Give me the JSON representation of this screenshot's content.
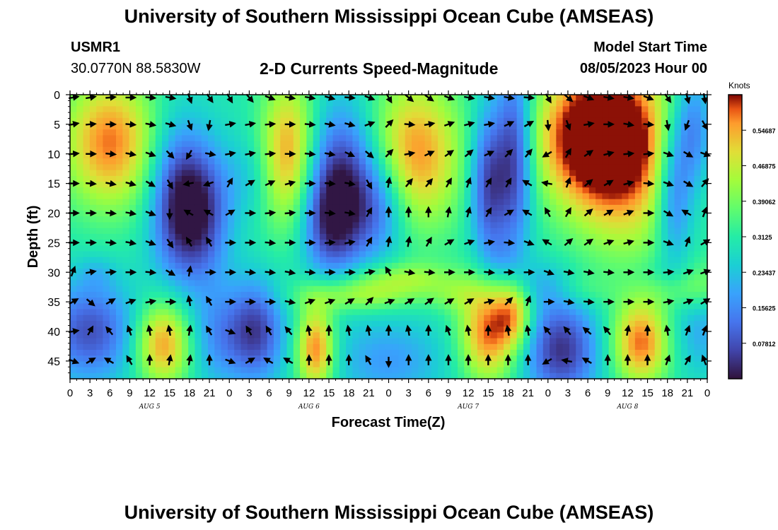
{
  "header": {
    "title": "University of Southern Mississippi Ocean Cube (AMSEAS)",
    "station": "USMR1",
    "coordinates": "30.0770N  88.5830W",
    "subtitle": "2-D Currents Speed-Magnitude",
    "model_start_label": "Model Start Time",
    "model_start_value": "08/05/2023 Hour 00"
  },
  "footer": {
    "title": "University of Southern Mississippi Ocean Cube (AMSEAS)"
  },
  "chart_data": {
    "type": "heatmap",
    "title": "2-D Currents Speed-Magnitude",
    "xlabel": "Forecast Time(Z)",
    "ylabel": "Depth (ft)",
    "x_hours_range": [
      0,
      96
    ],
    "x_tick_hours": [
      0,
      3,
      6,
      9,
      12,
      15,
      18,
      21,
      24,
      27,
      30,
      33,
      36,
      39,
      42,
      45,
      48,
      51,
      54,
      57,
      60,
      63,
      66,
      69,
      72,
      75,
      78,
      81,
      84,
      87,
      90,
      93,
      96
    ],
    "x_tick_labels": [
      "0",
      "3",
      "6",
      "9",
      "12",
      "15",
      "18",
      "21",
      "0",
      "3",
      "6",
      "9",
      "12",
      "15",
      "18",
      "21",
      "0",
      "3",
      "6",
      "9",
      "12",
      "15",
      "18",
      "21",
      "0",
      "3",
      "6",
      "9",
      "12",
      "15",
      "18",
      "21",
      "0"
    ],
    "day_labels": [
      {
        "hour": 12,
        "label": "AUG 5"
      },
      {
        "hour": 36,
        "label": "AUG 6"
      },
      {
        "hour": 60,
        "label": "AUG 7"
      },
      {
        "hour": 84,
        "label": "AUG 8"
      }
    ],
    "ylim": [
      0,
      48
    ],
    "y_inverted": true,
    "y_ticks": [
      0,
      5,
      10,
      15,
      20,
      25,
      30,
      35,
      40,
      45
    ],
    "y_tick_labels": [
      "0",
      "5",
      "10",
      "15",
      "20",
      "25",
      "30",
      "35",
      "40",
      "45"
    ],
    "colorbar": {
      "title": "Knots",
      "range": [
        0,
        0.625
      ],
      "ticks": [
        0.07812,
        0.15625,
        0.23437,
        0.3125,
        0.39062,
        0.46875,
        0.54687
      ],
      "tick_labels": [
        "0.07812",
        "0.15625",
        "0.23437",
        "0.3125",
        "0.39062",
        "0.46875",
        "0.54687"
      ],
      "colormap": "turbo"
    },
    "speed_blobs": {
      "base": 0.3,
      "blobs": [
        {
          "h": 6,
          "d": 8,
          "sh": 5,
          "sd": 8,
          "a": 0.28
        },
        {
          "h": 3,
          "d": 40,
          "sh": 5,
          "sd": 6,
          "a": -0.22
        },
        {
          "h": 16,
          "d": 18,
          "sh": 3,
          "sd": 9,
          "a": -0.24
        },
        {
          "h": 20,
          "d": 20,
          "sh": 3,
          "sd": 8,
          "a": -0.22
        },
        {
          "h": 14,
          "d": 42,
          "sh": 3,
          "sd": 5,
          "a": 0.27
        },
        {
          "h": 4,
          "d": 30,
          "sh": 2,
          "sd": 2,
          "a": -0.05
        },
        {
          "h": 22,
          "d": 41,
          "sh": 3,
          "sd": 6,
          "a": -0.12
        },
        {
          "h": 28,
          "d": 40,
          "sh": 3,
          "sd": 6,
          "a": -0.24
        },
        {
          "h": 27,
          "d": 14,
          "sh": 3,
          "sd": 5,
          "a": -0.06
        },
        {
          "h": 33,
          "d": 10,
          "sh": 3,
          "sd": 9,
          "a": 0.27
        },
        {
          "h": 39,
          "d": 22,
          "sh": 3,
          "sd": 6,
          "a": -0.15
        },
        {
          "h": 41,
          "d": 15,
          "sh": 4,
          "sd": 9,
          "a": -0.28
        },
        {
          "h": 47,
          "d": 19,
          "sh": 3,
          "sd": 6,
          "a": -0.15
        },
        {
          "h": 37,
          "d": 43,
          "sh": 2,
          "sd": 5,
          "a": 0.29
        },
        {
          "h": 43,
          "d": 34,
          "sh": 6,
          "sd": 2,
          "a": 0.15
        },
        {
          "h": 52,
          "d": 10,
          "sh": 5,
          "sd": 9,
          "a": 0.27
        },
        {
          "h": 50,
          "d": 31,
          "sh": 6,
          "sd": 2,
          "a": 0.12
        },
        {
          "h": 48,
          "d": 45,
          "sh": 6,
          "sd": 5,
          "a": -0.12
        },
        {
          "h": 63,
          "d": 15,
          "sh": 2,
          "sd": 9,
          "a": -0.24
        },
        {
          "h": 67,
          "d": 10,
          "sh": 2,
          "sd": 11,
          "a": -0.26
        },
        {
          "h": 65,
          "d": 28,
          "sh": 2,
          "sd": 3,
          "a": -0.06
        },
        {
          "h": 63,
          "d": 40,
          "sh": 3,
          "sd": 6,
          "a": 0.29
        },
        {
          "h": 67,
          "d": 37,
          "sh": 2,
          "sd": 4,
          "a": 0.2
        },
        {
          "h": 58,
          "d": 34,
          "sh": 3,
          "sd": 2,
          "a": 0.07
        },
        {
          "h": 78,
          "d": 7,
          "sh": 6,
          "sd": 8,
          "a": 0.32
        },
        {
          "h": 84,
          "d": 10,
          "sh": 6,
          "sd": 12,
          "a": 0.25
        },
        {
          "h": 74,
          "d": 43,
          "sh": 4,
          "sd": 6,
          "a": -0.26
        },
        {
          "h": 71,
          "d": 32,
          "sh": 3,
          "sd": 3,
          "a": -0.07
        },
        {
          "h": 86,
          "d": 42,
          "sh": 3,
          "sd": 5,
          "a": 0.28
        },
        {
          "h": 95,
          "d": 40,
          "sh": 3,
          "sd": 5,
          "a": -0.1
        },
        {
          "h": 91,
          "d": 16,
          "sh": 2,
          "sd": 9,
          "a": -0.22
        },
        {
          "h": 94,
          "d": 6,
          "sh": 2,
          "sd": 7,
          "a": -0.18
        },
        {
          "h": 94,
          "d": 32,
          "sh": 4,
          "sd": 3,
          "a": 0.12
        },
        {
          "h": 90,
          "d": 30,
          "sh": 4,
          "sd": 2,
          "a": -0.05
        },
        {
          "h": 77,
          "d": 33,
          "sh": 3,
          "sd": 2,
          "a": 0.05
        }
      ]
    },
    "vector_depths": [
      0,
      5,
      10,
      15,
      20,
      25,
      30,
      35,
      40,
      45
    ],
    "vector_hours": [
      0,
      3,
      6,
      9,
      12,
      15,
      18,
      21,
      24,
      27,
      30,
      33,
      36,
      39,
      42,
      45,
      48,
      51,
      54,
      57,
      60,
      63,
      66,
      69,
      72,
      75,
      78,
      81,
      84,
      87,
      90,
      93,
      96
    ],
    "vector_directions_deg": [
      [
        80,
        80,
        85,
        90,
        95,
        100,
        160,
        145,
        150,
        140,
        110,
        100,
        100,
        105,
        95,
        110,
        150,
        130,
        125,
        110,
        100,
        100,
        100,
        95,
        150,
        130,
        110,
        100,
        100,
        110,
        145,
        165,
        170
      ],
      [
        80,
        85,
        90,
        95,
        100,
        105,
        160,
        190,
        80,
        80,
        85,
        90,
        95,
        100,
        105,
        70,
        45,
        95,
        80,
        70,
        75,
        80,
        65,
        60,
        175,
        160,
        80,
        90,
        100,
        95,
        170,
        200,
        150
      ],
      [
        85,
        90,
        95,
        100,
        110,
        135,
        210,
        100,
        80,
        80,
        85,
        90,
        95,
        100,
        115,
        130,
        45,
        80,
        65,
        55,
        50,
        65,
        45,
        40,
        240,
        30,
        55,
        75,
        85,
        85,
        110,
        120,
        110
      ],
      [
        90,
        95,
        100,
        105,
        120,
        150,
        260,
        250,
        30,
        60,
        65,
        75,
        90,
        95,
        100,
        150,
        10,
        40,
        40,
        30,
        20,
        30,
        30,
        300,
        280,
        20,
        50,
        60,
        75,
        95,
        110,
        120,
        40
      ],
      [
        90,
        90,
        95,
        100,
        110,
        180,
        300,
        300,
        60,
        90,
        85,
        85,
        90,
        95,
        100,
        30,
        0,
        0,
        0,
        10,
        15,
        30,
        60,
        300,
        330,
        30,
        50,
        60,
        70,
        90,
        120,
        300,
        20
      ],
      [
        90,
        90,
        95,
        100,
        110,
        145,
        330,
        330,
        90,
        90,
        95,
        90,
        90,
        85,
        80,
        30,
        10,
        10,
        30,
        60,
        70,
        80,
        95,
        110,
        300,
        50,
        55,
        70,
        75,
        90,
        110,
        20,
        60
      ],
      [
        20,
        80,
        85,
        90,
        95,
        120,
        10,
        90,
        90,
        95,
        95,
        100,
        95,
        90,
        90,
        80,
        330,
        100,
        95,
        90,
        90,
        95,
        90,
        90,
        110,
        100,
        100,
        95,
        90,
        90,
        85,
        70,
        70
      ],
      [
        60,
        130,
        60,
        70,
        80,
        90,
        350,
        330,
        90,
        90,
        90,
        100,
        70,
        70,
        60,
        45,
        70,
        60,
        55,
        60,
        60,
        75,
        45,
        20,
        90,
        100,
        95,
        90,
        90,
        90,
        80,
        70,
        60
      ],
      [
        80,
        30,
        320,
        340,
        350,
        350,
        10,
        330,
        110,
        330,
        330,
        320,
        350,
        0,
        350,
        350,
        0,
        350,
        0,
        340,
        350,
        0,
        350,
        350,
        320,
        320,
        310,
        320,
        10,
        0,
        350,
        20,
        20
      ],
      [
        110,
        60,
        300,
        330,
        0,
        10,
        10,
        0,
        110,
        60,
        300,
        300,
        0,
        0,
        0,
        330,
        180,
        0,
        0,
        0,
        0,
        0,
        0,
        0,
        240,
        280,
        300,
        0,
        0,
        0,
        20,
        30,
        340
      ]
    ]
  }
}
